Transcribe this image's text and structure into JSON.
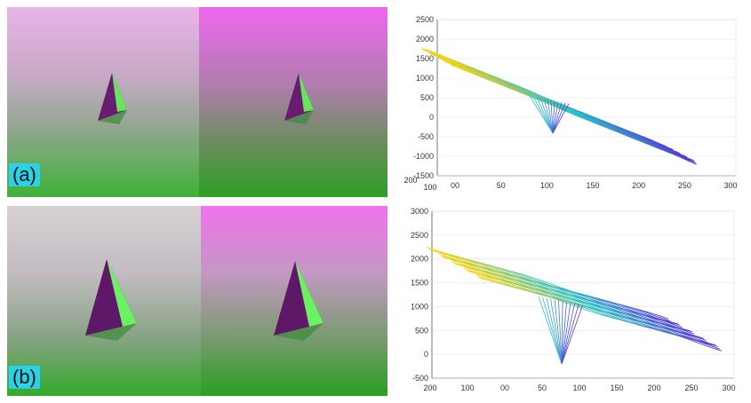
{
  "rows": [
    {
      "label": "(a)",
      "plot": {
        "z_ticks": [
          "2500",
          "2000",
          "1500",
          "1000",
          "500",
          "0",
          "-500",
          "-1000",
          "-1500"
        ],
        "x_ticks": [
          "00",
          "50",
          "100",
          "150",
          "200",
          "250",
          "300"
        ],
        "y_ticks": [
          "200",
          "100"
        ]
      }
    },
    {
      "label": "(b)",
      "plot": {
        "z_ticks": [
          "3000",
          "2500",
          "2000",
          "1500",
          "1000",
          "500",
          "0",
          "-500"
        ],
        "x_ticks": [
          "200",
          "100",
          "00",
          "50",
          "100",
          "150",
          "200",
          "250",
          "300"
        ]
      }
    }
  ],
  "colors": {
    "label_bg": "#29d3e6",
    "left_texture_top": "#e7a9e6",
    "left_texture_bottom": "#22b81e",
    "right_texture_top": "#ee5ef0",
    "right_texture_bottom": "#25a820",
    "surface_high": "#f2d216",
    "surface_mid": "#2cc0c8",
    "surface_low": "#5b2dd8"
  }
}
